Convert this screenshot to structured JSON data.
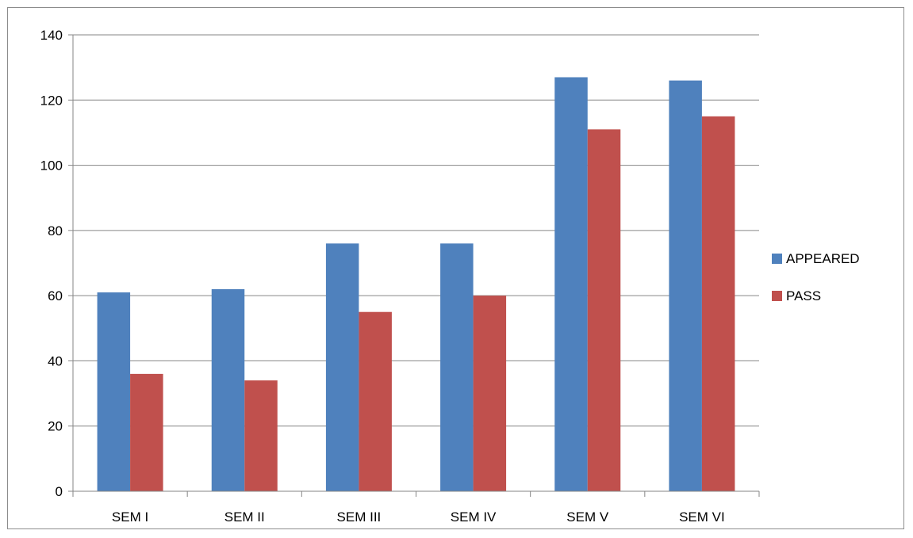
{
  "chart_data": {
    "type": "bar",
    "categories": [
      "SEM I",
      "SEM II",
      "SEM III",
      "SEM IV",
      "SEM V",
      "SEM VI"
    ],
    "series": [
      {
        "name": "APPEARED",
        "values": [
          61,
          62,
          76,
          76,
          127,
          126
        ],
        "color": "#4f81bd"
      },
      {
        "name": "PASS",
        "values": [
          36,
          34,
          55,
          60,
          111,
          115
        ],
        "color": "#c0504d"
      }
    ],
    "title": "",
    "xlabel": "",
    "ylabel": "",
    "ylim": [
      0,
      140
    ],
    "yticks": [
      0,
      20,
      40,
      60,
      80,
      100,
      120,
      140
    ],
    "grid": true,
    "legend_position": "right"
  }
}
